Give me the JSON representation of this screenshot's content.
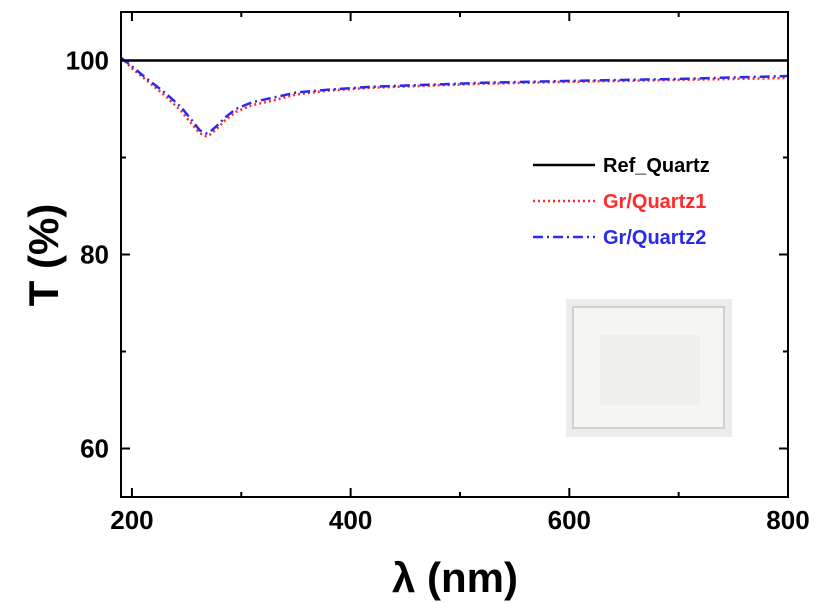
{
  "chart_data": {
    "type": "line",
    "title": "",
    "xlabel": "λ (nm)",
    "ylabel": "T (%)",
    "xlim": [
      190,
      800
    ],
    "ylim": [
      55,
      105
    ],
    "xticks": [
      200,
      400,
      600,
      800
    ],
    "yticks": [
      60,
      80,
      100
    ],
    "xtick_labels": [
      "200",
      "400",
      "600",
      "800"
    ],
    "ytick_labels": [
      "60",
      "80",
      "100"
    ],
    "grid": false,
    "legend_position": "right",
    "series": [
      {
        "name": "Ref_Quartz",
        "color": "#000000",
        "style": "solid",
        "x": [
          190,
          800
        ],
        "y": [
          100.0,
          100.0
        ]
      },
      {
        "name": "Gr/Quartz1",
        "color": "#ff2a2a",
        "style": "dotted",
        "x": [
          190,
          200,
          215,
          230,
          245,
          255,
          262,
          268,
          272,
          278,
          285,
          295,
          310,
          330,
          350,
          380,
          420,
          470,
          520,
          600,
          700,
          800
        ],
        "y": [
          100.3,
          99.2,
          97.8,
          96.4,
          94.8,
          93.4,
          92.5,
          92.2,
          92.4,
          93.0,
          93.8,
          94.7,
          95.4,
          95.9,
          96.5,
          96.9,
          97.2,
          97.4,
          97.6,
          97.8,
          98.0,
          98.2
        ]
      },
      {
        "name": "Gr/Quartz2",
        "color": "#2a2aee",
        "style": "dashdot",
        "x": [
          190,
          200,
          215,
          230,
          245,
          255,
          262,
          268,
          272,
          278,
          285,
          295,
          310,
          330,
          350,
          380,
          420,
          470,
          520,
          600,
          700,
          800
        ],
        "y": [
          100.3,
          99.4,
          98.0,
          96.7,
          95.2,
          93.8,
          92.8,
          92.5,
          92.7,
          93.3,
          94.1,
          95.0,
          95.7,
          96.2,
          96.7,
          97.0,
          97.3,
          97.5,
          97.7,
          97.9,
          98.1,
          98.4
        ]
      }
    ]
  }
}
